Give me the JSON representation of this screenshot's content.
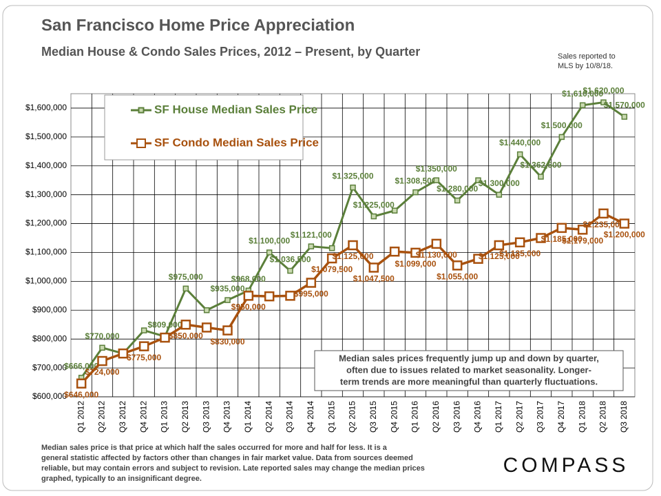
{
  "chart_data": {
    "type": "line",
    "title": "San Francisco Home Price Appreciation",
    "subtitle": "Median House & Condo Sales Prices, 2012 – Present, by Quarter",
    "note": [
      "Sales reported to",
      "MLS by 10/8/18."
    ],
    "annotation": [
      "Median sales prices frequently jump up and down by quarter,",
      "often due to issues related to market seasonality. Longer-",
      "term trends are more meaningful than quarterly fluctuations."
    ],
    "footnote": [
      "Median sales price is that price at which half the sales occurred for more and half for less. It is a",
      "general statistic affected by factors other than changes in fair market value. Data from sources deemed",
      "reliable, but may contain errors and subject to revision. Late reported sales may change the median prices",
      "graphed, typically to an insignificant degree."
    ],
    "logo": "COMPASS",
    "categories": [
      "Q1 2012",
      "Q2 2012",
      "Q3 2012",
      "Q4 2012",
      "Q1 2013",
      "Q2 2013",
      "Q3 2013",
      "Q4 2013",
      "Q1 2014",
      "Q2 2014",
      "Q3 2014",
      "Q4 2014",
      "Q1 2015",
      "Q2 2015",
      "Q3 2015",
      "Q4 2015",
      "Q1 2016",
      "Q2 2016",
      "Q3 2016",
      "Q4 2016",
      "Q1 2017",
      "Q2 2017",
      "Q3 2017",
      "Q4 2017",
      "Q1 2018",
      "Q2 2018",
      "Q3 2018"
    ],
    "series": [
      {
        "name": "SF House Median Sales Price",
        "color": "#5b7f3a",
        "values": [
          666000,
          770000,
          750000,
          830000,
          809000,
          975000,
          900000,
          935000,
          968000,
          1100000,
          1036500,
          1121000,
          1115000,
          1325000,
          1225000,
          1245000,
          1308500,
          1350000,
          1280000,
          1350000,
          1300000,
          1440000,
          1362500,
          1500000,
          1610000,
          1620000,
          1570000
        ],
        "value_labels": [
          "$666,000",
          "$770,000",
          null,
          null,
          "$809,000",
          "$975,000",
          null,
          "$935,000",
          "$968,000",
          "$1,100,000",
          "$1,036,500",
          "$1,121,000",
          null,
          "$1,325,000",
          "$1,225,000",
          null,
          "$1,308,500",
          "$1,350,000",
          "$1,280,000",
          null,
          "$1,300,000",
          "$1,440,000",
          "$1,362,500",
          "$1,500,000",
          "$1,610,000",
          "$1,620,000",
          "$1,570,000"
        ]
      },
      {
        "name": "SF Condo Median Sales Price",
        "color": "#a8510e",
        "values": [
          646000,
          724000,
          750000,
          775000,
          805000,
          850000,
          840000,
          830000,
          950000,
          948000,
          950000,
          995000,
          1079500,
          1125000,
          1047500,
          1103000,
          1099000,
          1130000,
          1055000,
          1078000,
          1125000,
          1135000,
          1150000,
          1185000,
          1179000,
          1235000,
          1200000
        ],
        "value_labels": [
          "$646,000",
          "$724,000",
          null,
          "$775,000",
          null,
          "$850,000",
          null,
          "$830,000",
          "$950,000",
          null,
          null,
          "$995,000",
          "$1,079,500",
          "$1,125,000",
          "$1,047,500",
          null,
          "$1,099,000",
          "$1,130,000",
          "$1,055,000",
          null,
          "$1,125,000",
          "$1,135,000",
          null,
          "$1,185,000",
          "$1,179,000",
          "$1,235,000",
          "$1,200,000"
        ]
      }
    ],
    "ylim": [
      600000,
      1650000
    ],
    "yticks": [
      {
        "value": 600000,
        "label": "$600,000"
      },
      {
        "value": 700000,
        "label": "$700,000"
      },
      {
        "value": 800000,
        "label": "$800,000"
      },
      {
        "value": 900000,
        "label": "$900,000"
      },
      {
        "value": 1000000,
        "label": "$1,000,000"
      },
      {
        "value": 1100000,
        "label": "$1,100,000"
      },
      {
        "value": 1200000,
        "label": "$1,200,000"
      },
      {
        "value": 1300000,
        "label": "$1,300,000"
      },
      {
        "value": 1400000,
        "label": "$1,400,000"
      },
      {
        "value": 1500000,
        "label": "$1,500,000"
      },
      {
        "value": 1600000,
        "label": "$1,600,000"
      }
    ],
    "grid": true
  }
}
